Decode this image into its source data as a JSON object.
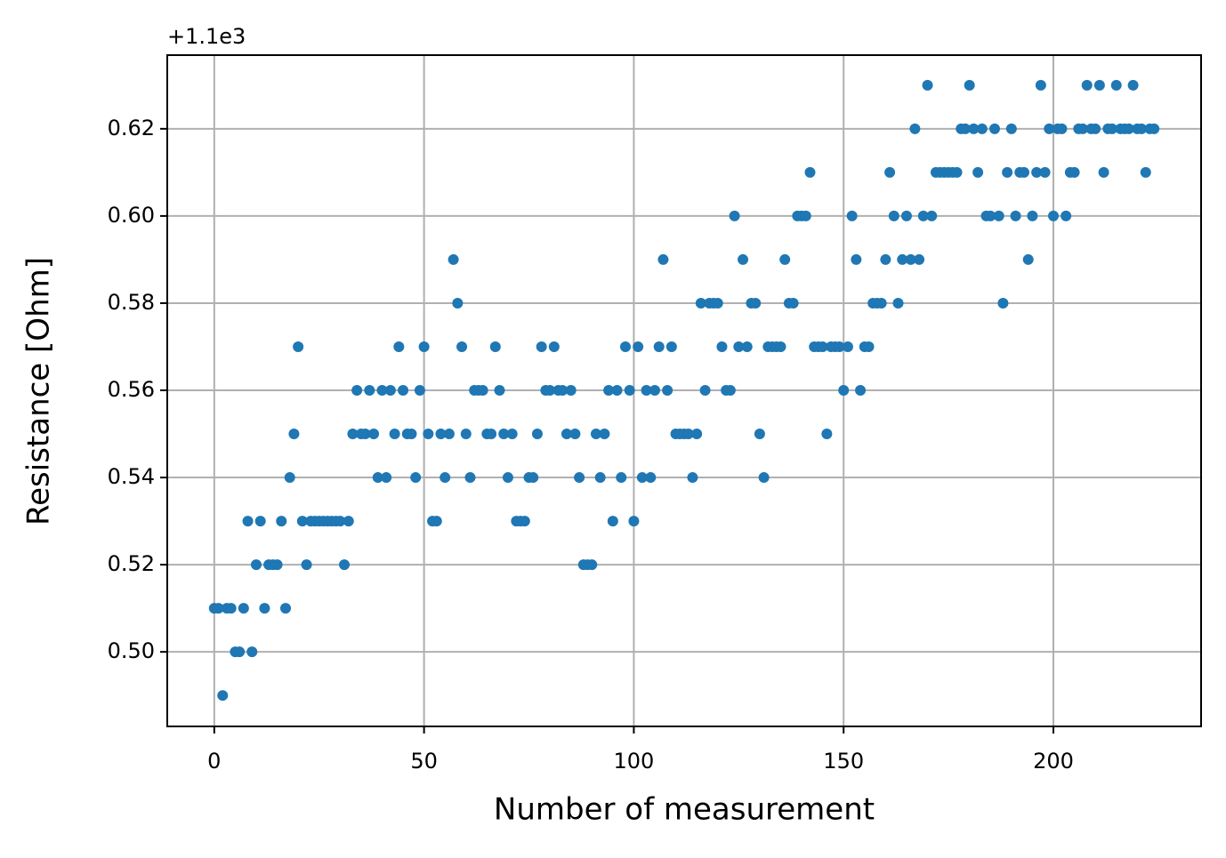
{
  "chart_data": {
    "type": "scatter",
    "xlabel": "Number of measurement",
    "ylabel": "Resistance [Ohm]",
    "y_offset_label": "+1.1e3",
    "color": "#1f77b4",
    "grid": true,
    "xlim": [
      -11.2,
      235.2
    ],
    "ylim": [
      0.4829,
      0.6369
    ],
    "xticks": [
      0,
      50,
      100,
      150,
      200
    ],
    "yticks": [
      {
        "value": 0.5,
        "label": "0.50"
      },
      {
        "value": 0.52,
        "label": "0.52"
      },
      {
        "value": 0.54,
        "label": "0.54"
      },
      {
        "value": 0.56,
        "label": "0.56"
      },
      {
        "value": 0.58,
        "label": "0.58"
      },
      {
        "value": 0.6,
        "label": "0.60"
      },
      {
        "value": 0.62,
        "label": "0.62"
      }
    ],
    "x": [
      0,
      1,
      2,
      3,
      4,
      5,
      6,
      7,
      8,
      9,
      10,
      11,
      12,
      13,
      14,
      15,
      16,
      17,
      18,
      19,
      20,
      21,
      22,
      23,
      24,
      25,
      26,
      27,
      28,
      29,
      30,
      31,
      32,
      33,
      34,
      35,
      36,
      37,
      38,
      39,
      40,
      41,
      42,
      43,
      44,
      45,
      46,
      47,
      48,
      49,
      50,
      51,
      52,
      53,
      54,
      55,
      56,
      57,
      58,
      59,
      60,
      61,
      62,
      63,
      64,
      65,
      66,
      67,
      68,
      69,
      70,
      71,
      72,
      73,
      74,
      75,
      76,
      77,
      78,
      79,
      80,
      81,
      82,
      83,
      84,
      85,
      86,
      87,
      88,
      89,
      90,
      91,
      92,
      93,
      94,
      95,
      96,
      97,
      98,
      99,
      100,
      101,
      102,
      103,
      104,
      105,
      106,
      107,
      108,
      109,
      110,
      111,
      112,
      113,
      114,
      115,
      116,
      117,
      118,
      119,
      120,
      121,
      122,
      123,
      124,
      125,
      126,
      127,
      128,
      129,
      130,
      131,
      132,
      133,
      134,
      135,
      136,
      137,
      138,
      139,
      140,
      141,
      142,
      143,
      144,
      145,
      146,
      147,
      148,
      149,
      150,
      151,
      152,
      153,
      154,
      155,
      156,
      157,
      158,
      159,
      160,
      161,
      162,
      163,
      164,
      165,
      166,
      167,
      168,
      169,
      170,
      171,
      172,
      173,
      174,
      175,
      176,
      177,
      178,
      179,
      180,
      181,
      182,
      183,
      184,
      185,
      186,
      187,
      188,
      189,
      190,
      191,
      192,
      193,
      194,
      195,
      196,
      197,
      198,
      199,
      200,
      201,
      202,
      203,
      204,
      205,
      206,
      207,
      208,
      209,
      210,
      211,
      212,
      213,
      214,
      215,
      216,
      217,
      218,
      219,
      220,
      221,
      222,
      223,
      224
    ],
    "values": [
      0.51,
      0.51,
      0.49,
      0.51,
      0.51,
      0.5,
      0.5,
      0.51,
      0.53,
      0.5,
      0.52,
      0.53,
      0.51,
      0.52,
      0.52,
      0.52,
      0.53,
      0.51,
      0.54,
      0.55,
      0.57,
      0.53,
      0.52,
      0.53,
      0.53,
      0.53,
      0.53,
      0.53,
      0.53,
      0.53,
      0.53,
      0.52,
      0.53,
      0.55,
      0.56,
      0.55,
      0.55,
      0.56,
      0.55,
      0.54,
      0.56,
      0.54,
      0.56,
      0.55,
      0.57,
      0.56,
      0.55,
      0.55,
      0.54,
      0.56,
      0.57,
      0.55,
      0.53,
      0.53,
      0.55,
      0.54,
      0.55,
      0.59,
      0.58,
      0.57,
      0.55,
      0.54,
      0.56,
      0.56,
      0.56,
      0.55,
      0.55,
      0.57,
      0.56,
      0.55,
      0.54,
      0.55,
      0.53,
      0.53,
      0.53,
      0.54,
      0.54,
      0.55,
      0.57,
      0.56,
      0.56,
      0.57,
      0.56,
      0.56,
      0.55,
      0.56,
      0.55,
      0.54,
      0.52,
      0.52,
      0.52,
      0.55,
      0.54,
      0.55,
      0.56,
      0.53,
      0.56,
      0.54,
      0.57,
      0.56,
      0.53,
      0.57,
      0.54,
      0.56,
      0.54,
      0.56,
      0.57,
      0.59,
      0.56,
      0.57,
      0.55,
      0.55,
      0.55,
      0.55,
      0.54,
      0.55,
      0.58,
      0.56,
      0.58,
      0.58,
      0.58,
      0.57,
      0.56,
      0.56,
      0.6,
      0.57,
      0.59,
      0.57,
      0.58,
      0.58,
      0.55,
      0.54,
      0.57,
      0.57,
      0.57,
      0.57,
      0.59,
      0.58,
      0.58,
      0.6,
      0.6,
      0.6,
      0.61,
      0.57,
      0.57,
      0.57,
      0.55,
      0.57,
      0.57,
      0.57,
      0.56,
      0.57,
      0.6,
      0.59,
      0.56,
      0.57,
      0.57,
      0.58,
      0.58,
      0.58,
      0.59,
      0.61,
      0.6,
      0.58,
      0.59,
      0.6,
      0.59,
      0.62,
      0.59,
      0.6,
      0.63,
      0.6,
      0.61,
      0.61,
      0.61,
      0.61,
      0.61,
      0.61,
      0.62,
      0.62,
      0.63,
      0.62,
      0.61,
      0.62,
      0.6,
      0.6,
      0.62,
      0.6,
      0.58,
      0.61,
      0.62,
      0.6,
      0.61,
      0.61,
      0.59,
      0.6,
      0.61,
      0.63,
      0.61,
      0.62,
      0.6,
      0.62,
      0.62,
      0.6,
      0.61,
      0.61,
      0.62,
      0.62,
      0.63,
      0.62,
      0.62,
      0.63,
      0.61,
      0.62,
      0.62,
      0.63,
      0.62,
      0.62,
      0.62,
      0.63,
      0.62,
      0.62,
      0.61,
      0.62,
      0.62
    ]
  }
}
